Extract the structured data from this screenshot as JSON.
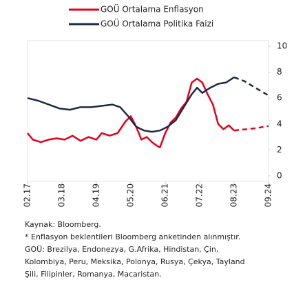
{
  "chart_data": {
    "type": "line",
    "series": [
      {
        "name": "GOÜ Ortalama Enflasyon",
        "color": "#e3001b",
        "dashed_from": "08.23",
        "x": [
          "02.17",
          "04.17",
          "07.17",
          "10.17",
          "01.18",
          "04.18",
          "07.18",
          "10.18",
          "01.19",
          "04.19",
          "06.19",
          "09.19",
          "12.19",
          "03.20",
          "05.20",
          "07.20",
          "09.20",
          "11.20",
          "01.21",
          "03.21",
          "04.21",
          "06.21",
          "08.21",
          "10.21",
          "12.21",
          "02.22",
          "04.22",
          "06.22",
          "08.22",
          "10.22",
          "12.22",
          "02.23",
          "04.23",
          "06.23",
          "08.23",
          "10.23",
          "01.24",
          "05.24",
          "09.24"
        ],
        "values": [
          3.3,
          2.8,
          2.6,
          2.8,
          2.9,
          2.8,
          3.1,
          2.7,
          3.0,
          2.8,
          3.3,
          3.1,
          3.3,
          4.2,
          4.6,
          3.8,
          2.8,
          3.0,
          2.6,
          2.3,
          2.2,
          3.3,
          4.1,
          4.5,
          5.2,
          5.7,
          7.2,
          7.5,
          7.2,
          6.3,
          5.5,
          4.0,
          3.6,
          3.9,
          3.5,
          3.55,
          3.6,
          3.7,
          3.85
        ]
      },
      {
        "name": "GOÜ Ortalama Politika Faizi",
        "color": "#1f2a44",
        "dashed_from": "08.23",
        "x": [
          "02.17",
          "06.17",
          "10.17",
          "02.18",
          "06.18",
          "10.18",
          "02.19",
          "06.19",
          "10.19",
          "01.20",
          "04.20",
          "07.20",
          "10.20",
          "01.21",
          "04.21",
          "07.21",
          "10.21",
          "01.22",
          "04.22",
          "06.22",
          "08.22",
          "11.22",
          "02.23",
          "05.23",
          "08.23",
          "12.23",
          "04.24",
          "09.24"
        ],
        "values": [
          6.0,
          5.8,
          5.5,
          5.2,
          5.1,
          5.3,
          5.3,
          5.4,
          5.5,
          5.3,
          4.6,
          3.8,
          3.5,
          3.4,
          3.5,
          3.8,
          4.3,
          5.3,
          6.3,
          6.8,
          6.4,
          6.8,
          7.1,
          7.2,
          7.6,
          7.3,
          6.8,
          6.2
        ]
      }
    ],
    "xlim": [
      "02.17",
      "09.24"
    ],
    "xticks": [
      "02.17",
      "03.18",
      "04.19",
      "05.20",
      "06.21",
      "07.22",
      "08.23",
      "09.24"
    ],
    "ylim": [
      0,
      10
    ],
    "yticks": [
      0,
      2,
      4,
      6,
      8,
      10
    ],
    "notes": [
      "Kaynak: Bloomberg.",
      "* Enflasyon beklentileri Bloomberg anketinden alınmıştır.",
      "GOÜ: Brezilya, Endonezya, G.Afrika, Hindistan, Çin,",
      "Kolombiya, Peru, Meksika, Polonya, Rusya, Çekya, Tayland",
      "Şili, Filipinler, Romanya, Macaristan."
    ]
  }
}
